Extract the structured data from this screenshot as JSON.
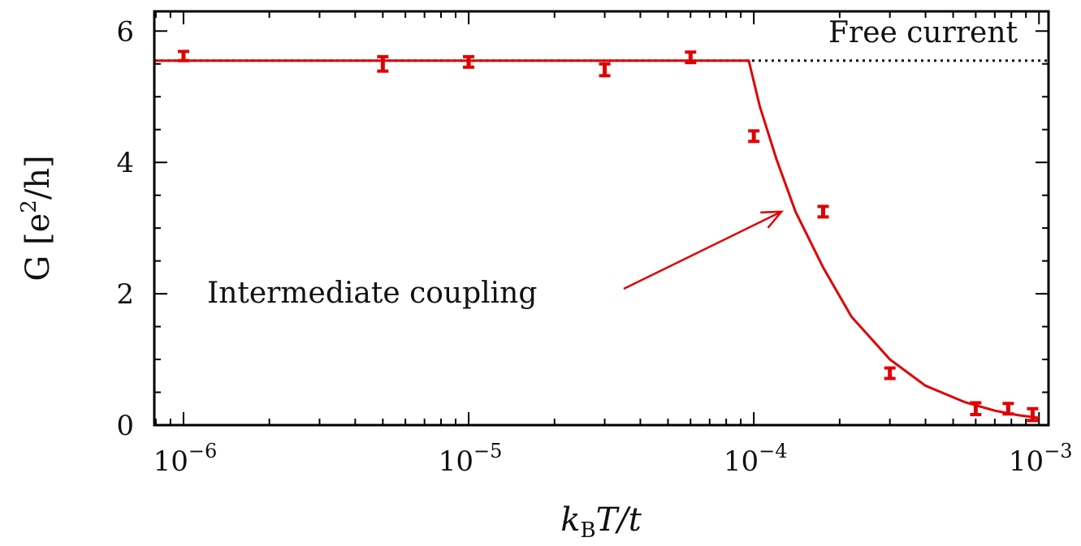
{
  "chart_data": {
    "type": "line",
    "xscale": "log",
    "xlim": [
      7.9e-07,
      0.00108
    ],
    "ylim": [
      0,
      6.3
    ],
    "xlabel": {
      "base": "k",
      "sub": "B",
      "rest": "T/t"
    },
    "ylabel": {
      "pre": "G [e",
      "sup": "2",
      "post": "/h]"
    },
    "x_ticks": [
      {
        "value": 1e-06,
        "base": "10",
        "exp": "−6"
      },
      {
        "value": 1e-05,
        "base": "10",
        "exp": "−5"
      },
      {
        "value": 0.0001,
        "base": "10",
        "exp": "−4"
      },
      {
        "value": 0.001,
        "base": "10",
        "exp": "−3"
      }
    ],
    "y_ticks": [
      0,
      2,
      4,
      6
    ],
    "grid": false,
    "free_current": {
      "value": 5.55,
      "label": "Free current",
      "style": "dotted",
      "color": "#111111"
    },
    "annotation": {
      "text": "Intermediate coupling",
      "target": [
        0.000125,
        3.25
      ]
    },
    "series": [
      {
        "kind": "errorbar",
        "color": "#e00000",
        "points": [
          {
            "x": 1e-06,
            "y": 5.62,
            "err": 0.07
          },
          {
            "x": 5e-06,
            "y": 5.5,
            "err": 0.11
          },
          {
            "x": 1e-05,
            "y": 5.53,
            "err": 0.08
          },
          {
            "x": 3e-05,
            "y": 5.41,
            "err": 0.09
          },
          {
            "x": 6e-05,
            "y": 5.6,
            "err": 0.08
          },
          {
            "x": 0.0001,
            "y": 4.4,
            "err": 0.08
          },
          {
            "x": 0.000175,
            "y": 3.25,
            "err": 0.08
          },
          {
            "x": 0.0003,
            "y": 0.79,
            "err": 0.08
          },
          {
            "x": 0.0006,
            "y": 0.25,
            "err": 0.09
          },
          {
            "x": 0.00078,
            "y": 0.25,
            "err": 0.08
          },
          {
            "x": 0.00095,
            "y": 0.16,
            "err": 0.09
          }
        ]
      },
      {
        "kind": "line",
        "color": "#e00000",
        "points": [
          [
            7.9e-07,
            5.55
          ],
          [
            9.6e-05,
            5.55
          ],
          [
            0.000105,
            4.85
          ],
          [
            0.00012,
            4.05
          ],
          [
            0.00014,
            3.25
          ],
          [
            0.000175,
            2.4
          ],
          [
            0.00022,
            1.65
          ],
          [
            0.0003,
            1.0
          ],
          [
            0.0004,
            0.6
          ],
          [
            0.00055,
            0.35
          ],
          [
            0.0007,
            0.22
          ],
          [
            0.00085,
            0.15
          ],
          [
            0.001,
            0.11
          ]
        ]
      }
    ]
  }
}
